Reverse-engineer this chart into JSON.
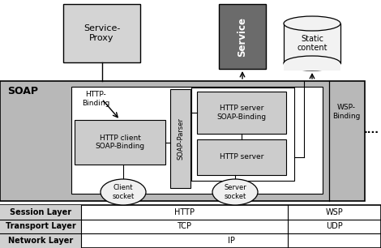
{
  "bg_color": "#ffffff",
  "soap_bg": "#b8b8b8",
  "inner_bg": "#e8e8e8",
  "box_gray": "#cccccc",
  "dark_service": "#6b6b6b",
  "cyl_bg": "#f2f2f2",
  "socket_bg": "#f0f0f0",
  "table_label_bg": "#c8c8c8",
  "soap_label": "SOAP",
  "service_proxy_label": "Service-\nProxy",
  "service_label": "Service",
  "static_content_label": "Static\ncontent",
  "http_binding_label": "HTTP-\nBinding",
  "wsp_binding_label": "WSP-\nBinding",
  "soap_parser_label": "SOAP-Parser",
  "http_client_label": "HTTP client\nSOAP-Binding",
  "http_server_soap_label": "HTTP server\nSOAP-Binding",
  "http_server_label": "HTTP server",
  "client_socket_label": "Client\nsocket",
  "server_socket_label": "Server\nsocket",
  "dots_label": "....",
  "session_layer": "Session Layer",
  "transport_layer": "Transport Layer",
  "network_layer": "Network Layer",
  "http_label": "HTTP",
  "tcp_label": "TCP",
  "ip_label": "IP",
  "wsp_label": "WSP",
  "udp_label": "UDP"
}
